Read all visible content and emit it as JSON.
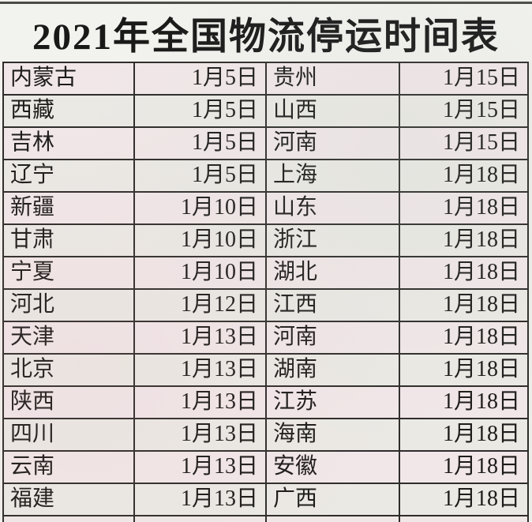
{
  "title": "2021年全国物流停运时间表",
  "colors": {
    "border": "#2e2d2b",
    "row_pink": "#f1e7e8",
    "row_gray": "#ebe9e4",
    "title_bg": "#f2f2ee",
    "text": "#1d1c1a"
  },
  "table": {
    "rows": [
      {
        "left_region": "内蒙古",
        "left_date": "1月5日",
        "right_region": "贵州",
        "right_date": "1月15日"
      },
      {
        "left_region": "西藏",
        "left_date": "1月5日",
        "right_region": "山西",
        "right_date": "1月15日"
      },
      {
        "left_region": "吉林",
        "left_date": "1月5日",
        "right_region": "河南",
        "right_date": "1月15日"
      },
      {
        "left_region": "辽宁",
        "left_date": "1月5日",
        "right_region": "上海",
        "right_date": "1月18日"
      },
      {
        "left_region": "新疆",
        "left_date": "1月10日",
        "right_region": "山东",
        "right_date": "1月18日"
      },
      {
        "left_region": "甘肃",
        "left_date": "1月10日",
        "right_region": "浙江",
        "right_date": "1月18日"
      },
      {
        "left_region": "宁夏",
        "left_date": "1月10日",
        "right_region": "湖北",
        "right_date": "1月18日"
      },
      {
        "left_region": "河北",
        "left_date": "1月12日",
        "right_region": "江西",
        "right_date": "1月18日"
      },
      {
        "left_region": "天津",
        "left_date": "1月13日",
        "right_region": "河南",
        "right_date": "1月18日"
      },
      {
        "left_region": "北京",
        "left_date": "1月13日",
        "right_region": "湖南",
        "right_date": "1月18日"
      },
      {
        "left_region": "陕西",
        "left_date": "1月13日",
        "right_region": "江苏",
        "right_date": "1月18日"
      },
      {
        "left_region": "四川",
        "left_date": "1月13日",
        "right_region": "海南",
        "right_date": "1月18日"
      },
      {
        "left_region": "云南",
        "left_date": "1月13日",
        "right_region": "安徽",
        "right_date": "1月18日"
      },
      {
        "left_region": "福建",
        "left_date": "1月13日",
        "right_region": "广西",
        "right_date": "1月18日"
      }
    ]
  }
}
